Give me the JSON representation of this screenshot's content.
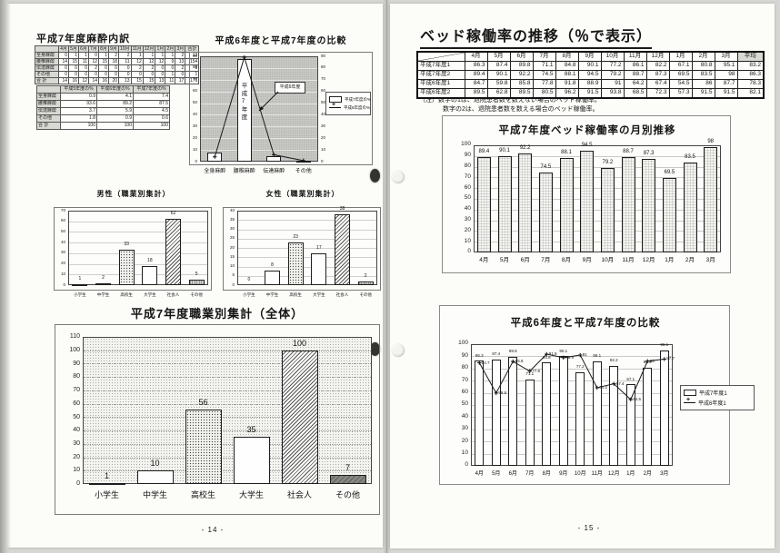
{
  "document": {
    "left_page_number": "- 14 -",
    "right_page_number": "- 15 -"
  },
  "left_page": {
    "anesthesia_title": "平成7年度麻酔内訳",
    "monthly_table": {
      "headers": [
        "",
        "4月",
        "5月",
        "6月",
        "7月",
        "8月",
        "9月",
        "10月",
        "11月",
        "12月",
        "1月",
        "2月",
        "3月",
        "合計"
      ],
      "rows": [
        [
          "全身麻酔",
          "0",
          "1",
          "1",
          "0",
          "1",
          "2",
          "2",
          "1",
          "1",
          "1",
          "1",
          "2",
          "13"
        ],
        [
          "腰椎麻酔",
          "14",
          "15",
          "11",
          "12",
          "15",
          "18",
          "11",
          "12",
          "12",
          "12",
          "9",
          "13",
          "154"
        ],
        [
          "伝達麻酔",
          "0",
          "0",
          "0",
          "2",
          "0",
          "0",
          "0",
          "2",
          "2",
          "0",
          "0",
          "2",
          "8"
        ],
        [
          "その他",
          "0",
          "0",
          "0",
          "0",
          "0",
          "0",
          "0",
          "0",
          "0",
          "0",
          "1",
          "0",
          "1"
        ],
        [
          "合 計",
          "14",
          "16",
          "12",
          "14",
          "16",
          "20",
          "13",
          "15",
          "15",
          "13",
          "11",
          "17",
          "176"
        ]
      ]
    },
    "percent_table": {
      "headers": [
        "",
        "平成5年度の%",
        "平成6年度の%",
        "平成7年度の%"
      ],
      "rows": [
        [
          "全身麻酔",
          "0.9",
          "4.1",
          "7.4"
        ],
        [
          "腰椎麻酔",
          "93.6",
          "89.2",
          "87.5"
        ],
        [
          "伝達麻酔",
          "3.7",
          "5.9",
          "4.5"
        ],
        [
          "その他",
          "1.8",
          "0.9",
          "0.6"
        ],
        [
          "合 計",
          "100",
          "100",
          "100"
        ]
      ]
    }
  },
  "right_page": {
    "main_title": "ベッド稼働率の推移（％で表示）",
    "bed_table": {
      "headers": [
        "",
        "4月",
        "5月",
        "6月",
        "7月",
        "8月",
        "9月",
        "10月",
        "11月",
        "12月",
        "1月",
        "2月",
        "3月",
        "平均"
      ],
      "rows": [
        [
          "平成7年度1",
          "86.3",
          "87.4",
          "89.8",
          "71.1",
          "84.8",
          "90.1",
          "77.2",
          "86.1",
          "82.2",
          "67.1",
          "80.8",
          "95.1",
          "83.2"
        ],
        [
          "平成7年度2",
          "89.4",
          "90.1",
          "92.2",
          "74.5",
          "88.1",
          "94.5",
          "79.2",
          "88.7",
          "87.3",
          "69.5",
          "83.5",
          "98",
          "86.3"
        ],
        [
          "平成6年度1",
          "84.7",
          "59.8",
          "85.8",
          "77.8",
          "91.8",
          "88.9",
          "91",
          "64.2",
          "67.4",
          "54.5",
          "86",
          "87.7",
          "78.3"
        ],
        [
          "平成6年度2",
          "89.5",
          "62.8",
          "89.5",
          "80.5",
          "96.2",
          "91.5",
          "93.8",
          "68.5",
          "72.3",
          "57.3",
          "91.5",
          "91.5",
          "82.1"
        ]
      ]
    },
    "notes": [
      "（注）数字の1は、退院患者数を数えない場合のベッド稼働率。",
      "数字の2は、退院患者数を数える場合のベッド稼働率。"
    ]
  },
  "chart_data": [
    {
      "id": "anesthesia-comparison-chart",
      "type": "bar+line",
      "title": "平成6年度と平成7年度の比較",
      "categories": [
        "全身麻酔",
        "腰椎麻酔",
        "伝達麻酔",
        "その他"
      ],
      "series": [
        {
          "name": "平成7年度の%",
          "type": "bar",
          "values": [
            7.4,
            87.5,
            4.5,
            0.6
          ]
        },
        {
          "name": "平成6年度の%",
          "type": "line",
          "values": [
            4.1,
            89.2,
            5.9,
            0.9
          ]
        }
      ],
      "ylim": [
        0,
        90
      ],
      "ytick": 10,
      "bar_inner_label": "平成7年度",
      "annotation_callout": "平成6年度",
      "legend_position": "right-inside"
    },
    {
      "id": "male-by-occupation-chart",
      "type": "bar",
      "title": "男性（職業別集計）",
      "categories": [
        "小学生",
        "中学生",
        "高校生",
        "大学生",
        "社会人",
        "その他"
      ],
      "values": [
        1,
        2,
        33,
        18,
        62,
        5
      ],
      "ylim": [
        0,
        70
      ],
      "ytick": 10
    },
    {
      "id": "female-by-occupation-chart",
      "type": "bar",
      "title": "女性（職業別集計）",
      "categories": [
        "小学生",
        "中学生",
        "高校生",
        "大学生",
        "社会人",
        "その他"
      ],
      "values": [
        0,
        8,
        23,
        17,
        38,
        2
      ],
      "ylim": [
        0,
        40
      ],
      "ytick": 5
    },
    {
      "id": "overall-by-occupation-chart",
      "type": "bar",
      "title": "平成7年度職業別集計（全体）",
      "categories": [
        "小学生",
        "中学生",
        "高校生",
        "大学生",
        "社会人",
        "その他"
      ],
      "values": [
        1,
        10,
        56,
        35,
        100,
        7
      ],
      "ylim": [
        0,
        110
      ],
      "ytick": 10
    },
    {
      "id": "bed-occupancy-monthly-chart",
      "type": "bar",
      "title": "平成7年度ベッド稼働率の月別推移",
      "categories": [
        "4月",
        "5月",
        "6月",
        "7月",
        "8月",
        "9月",
        "10月",
        "11月",
        "12月",
        "1月",
        "2月",
        "3月"
      ],
      "values": [
        89.4,
        90.1,
        92.2,
        74.5,
        88.1,
        94.5,
        79.2,
        88.7,
        87.3,
        69.5,
        83.5,
        98
      ],
      "ylim": [
        0,
        100
      ],
      "ytick": 10
    },
    {
      "id": "bed-occupancy-comparison-chart",
      "type": "bar+line",
      "title": "平成6年度と平成7年度の比較",
      "categories": [
        "4月",
        "5月",
        "6月",
        "7月",
        "8月",
        "9月",
        "10月",
        "11月",
        "12月",
        "1月",
        "2月",
        "3月"
      ],
      "series": [
        {
          "name": "平成7年度1",
          "type": "bar",
          "values": [
            86.3,
            87.4,
            89.8,
            71.1,
            84.8,
            90.1,
            77.2,
            86.1,
            82.2,
            67.1,
            80.8,
            95.1
          ]
        },
        {
          "name": "平成6年度1",
          "type": "line",
          "values": [
            84.7,
            59.8,
            85.8,
            77.8,
            91.8,
            88.9,
            91,
            64.2,
            67.4,
            54.5,
            86,
            87.7
          ]
        }
      ],
      "ylim": [
        0,
        100
      ],
      "ytick": 10,
      "legend_position": "right-outside"
    }
  ]
}
